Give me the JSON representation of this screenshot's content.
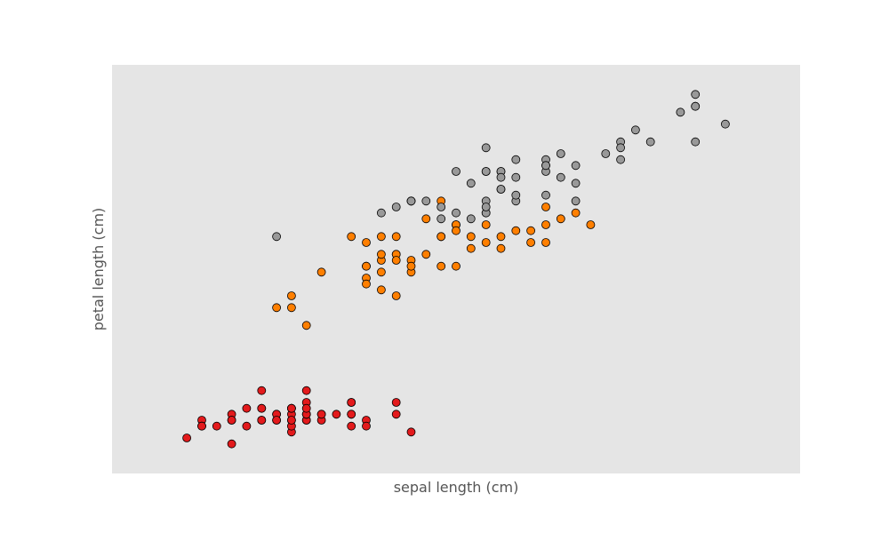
{
  "chart_data": {
    "type": "scatter",
    "xlabel": "sepal length (cm)",
    "ylabel": "petal length (cm)",
    "xlim": [
      3.8,
      8.4
    ],
    "ylim": [
      0.5,
      7.4
    ],
    "x_ticks_shown": false,
    "y_ticks_shown": false,
    "grid": false,
    "legend": "none",
    "colors": {
      "plot_background": "#e5e5e5",
      "marker_edge": "#000000",
      "axis_label": "#555555"
    },
    "series": [
      {
        "color": "#e31a1c",
        "points": [
          [
            5.1,
            1.4
          ],
          [
            4.9,
            1.4
          ],
          [
            4.7,
            1.3
          ],
          [
            4.6,
            1.5
          ],
          [
            5.0,
            1.4
          ],
          [
            5.4,
            1.7
          ],
          [
            4.6,
            1.4
          ],
          [
            5.0,
            1.5
          ],
          [
            4.4,
            1.4
          ],
          [
            4.9,
            1.5
          ],
          [
            5.4,
            1.5
          ],
          [
            4.8,
            1.6
          ],
          [
            4.8,
            1.4
          ],
          [
            4.3,
            1.1
          ],
          [
            5.8,
            1.2
          ],
          [
            5.7,
            1.5
          ],
          [
            5.4,
            1.3
          ],
          [
            5.1,
            1.4
          ],
          [
            5.7,
            1.7
          ],
          [
            5.1,
            1.5
          ],
          [
            5.4,
            1.7
          ],
          [
            5.1,
            1.5
          ],
          [
            4.6,
            1.0
          ],
          [
            5.1,
            1.7
          ],
          [
            4.8,
            1.9
          ],
          [
            5.0,
            1.6
          ],
          [
            5.0,
            1.6
          ],
          [
            5.2,
            1.5
          ],
          [
            5.2,
            1.4
          ],
          [
            4.7,
            1.6
          ],
          [
            4.8,
            1.6
          ],
          [
            5.4,
            1.5
          ],
          [
            5.2,
            1.5
          ],
          [
            5.5,
            1.4
          ],
          [
            4.9,
            1.5
          ],
          [
            5.0,
            1.2
          ],
          [
            5.5,
            1.3
          ],
          [
            4.9,
            1.4
          ],
          [
            4.4,
            1.3
          ],
          [
            5.1,
            1.5
          ],
          [
            5.0,
            1.3
          ],
          [
            4.5,
            1.3
          ],
          [
            4.4,
            1.3
          ],
          [
            5.0,
            1.6
          ],
          [
            5.1,
            1.9
          ],
          [
            4.8,
            1.4
          ],
          [
            5.1,
            1.6
          ],
          [
            4.6,
            1.4
          ],
          [
            5.3,
            1.5
          ],
          [
            5.0,
            1.4
          ]
        ]
      },
      {
        "color": "#ff7f00",
        "points": [
          [
            7.0,
            4.7
          ],
          [
            6.4,
            4.5
          ],
          [
            6.9,
            4.9
          ],
          [
            5.5,
            4.0
          ],
          [
            6.5,
            4.6
          ],
          [
            5.7,
            4.5
          ],
          [
            6.3,
            4.7
          ],
          [
            4.9,
            3.3
          ],
          [
            6.6,
            4.6
          ],
          [
            5.2,
            3.9
          ],
          [
            5.0,
            3.5
          ],
          [
            5.9,
            4.2
          ],
          [
            6.0,
            4.0
          ],
          [
            6.1,
            4.7
          ],
          [
            5.6,
            3.6
          ],
          [
            6.7,
            4.4
          ],
          [
            5.6,
            4.5
          ],
          [
            5.8,
            4.1
          ],
          [
            6.2,
            4.5
          ],
          [
            5.6,
            3.9
          ],
          [
            5.9,
            4.8
          ],
          [
            6.1,
            4.0
          ],
          [
            6.3,
            4.9
          ],
          [
            6.1,
            4.7
          ],
          [
            6.4,
            4.3
          ],
          [
            6.6,
            4.4
          ],
          [
            6.8,
            4.8
          ],
          [
            6.7,
            5.0
          ],
          [
            6.0,
            4.5
          ],
          [
            5.7,
            3.5
          ],
          [
            5.5,
            3.8
          ],
          [
            5.5,
            3.7
          ],
          [
            5.8,
            3.9
          ],
          [
            6.0,
            5.1
          ],
          [
            5.4,
            4.5
          ],
          [
            6.0,
            4.5
          ],
          [
            6.7,
            4.7
          ],
          [
            6.3,
            4.4
          ],
          [
            5.6,
            4.1
          ],
          [
            5.5,
            4.0
          ],
          [
            5.5,
            4.4
          ],
          [
            6.1,
            4.6
          ],
          [
            5.8,
            4.0
          ],
          [
            5.0,
            3.3
          ],
          [
            5.6,
            4.2
          ],
          [
            5.7,
            4.2
          ],
          [
            5.7,
            4.2
          ],
          [
            6.2,
            4.3
          ],
          [
            5.1,
            3.0
          ],
          [
            5.7,
            4.1
          ]
        ]
      },
      {
        "color": "#999999",
        "points": [
          [
            6.3,
            6.0
          ],
          [
            5.8,
            5.1
          ],
          [
            7.1,
            5.9
          ],
          [
            6.3,
            5.6
          ],
          [
            6.5,
            5.8
          ],
          [
            7.6,
            6.6
          ],
          [
            4.9,
            4.5
          ],
          [
            7.3,
            6.3
          ],
          [
            6.7,
            5.8
          ],
          [
            7.2,
            6.1
          ],
          [
            6.5,
            5.1
          ],
          [
            6.4,
            5.3
          ],
          [
            6.8,
            5.5
          ],
          [
            5.7,
            5.0
          ],
          [
            5.8,
            5.1
          ],
          [
            6.4,
            5.3
          ],
          [
            6.5,
            5.5
          ],
          [
            7.7,
            6.7
          ],
          [
            7.7,
            6.9
          ],
          [
            6.0,
            5.0
          ],
          [
            6.9,
            5.7
          ],
          [
            5.6,
            4.9
          ],
          [
            7.7,
            6.7
          ],
          [
            6.3,
            4.9
          ],
          [
            6.7,
            5.7
          ],
          [
            7.2,
            6.0
          ],
          [
            6.2,
            4.8
          ],
          [
            6.1,
            4.9
          ],
          [
            6.4,
            5.6
          ],
          [
            7.2,
            5.8
          ],
          [
            7.4,
            6.1
          ],
          [
            7.9,
            6.4
          ],
          [
            6.4,
            5.6
          ],
          [
            6.3,
            5.1
          ],
          [
            6.1,
            5.6
          ],
          [
            7.7,
            6.1
          ],
          [
            6.3,
            5.6
          ],
          [
            6.4,
            5.5
          ],
          [
            6.0,
            4.8
          ],
          [
            6.9,
            5.4
          ],
          [
            6.7,
            5.6
          ],
          [
            6.9,
            5.1
          ],
          [
            5.8,
            5.1
          ],
          [
            6.8,
            5.9
          ],
          [
            6.7,
            5.7
          ],
          [
            6.7,
            5.2
          ],
          [
            6.3,
            5.0
          ],
          [
            6.5,
            5.2
          ],
          [
            6.2,
            5.4
          ],
          [
            5.9,
            5.1
          ]
        ]
      }
    ]
  }
}
